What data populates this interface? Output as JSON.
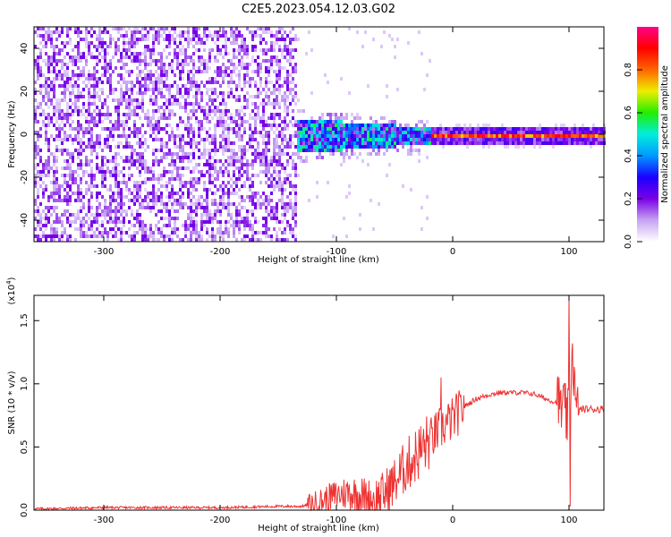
{
  "figure": {
    "title": "C2E5.2023.054.12.03.G02"
  },
  "colors": {
    "snr_line": "#ee3333",
    "colorbar_stops": [
      "#ffffff",
      "#c6a3f2",
      "#7a00e6",
      "#1a00ff",
      "#0099ff",
      "#00eedd",
      "#22ee00",
      "#eeee00",
      "#ff6600",
      "#ff0000",
      "#ff0088"
    ]
  },
  "chart_data": [
    {
      "type": "heatmap",
      "name": "spectrogram",
      "xlabel": "Height of straight line (km)",
      "ylabel": "Frequency (Hz)",
      "xlim": [
        -360,
        130
      ],
      "ylim": [
        -50,
        50
      ],
      "x_ticks": [
        -300,
        -200,
        -100,
        0,
        100
      ],
      "x_tick_labels": [
        "-300",
        "-200",
        "-100",
        "0",
        "100"
      ],
      "y_ticks": [
        -40,
        -20,
        0,
        20,
        40
      ],
      "y_tick_labels": [
        "-40",
        "-20",
        "0",
        "20",
        "40"
      ],
      "colorbar": {
        "label": "Normalized spectral amplitude",
        "range": [
          0,
          1
        ],
        "ticks": [
          0.0,
          0.2,
          0.4,
          0.6,
          0.8
        ],
        "tick_labels": [
          "0.0",
          "0.2",
          "0.4",
          "0.6",
          "0.8"
        ]
      },
      "regions": [
        {
          "x": [
            -360,
            -135
          ],
          "description_level": "broadband noise",
          "amplitude": 0.15
        },
        {
          "x": [
            -135,
            -20
          ],
          "center_freq": 0,
          "spread_hz": 8,
          "amplitude": 0.55
        },
        {
          "x": [
            -20,
            130
          ],
          "center_freq": 0,
          "spread_hz": 2,
          "amplitude": 0.9
        }
      ]
    },
    {
      "type": "line",
      "name": "snr",
      "xlabel": "Height of straight line (km)",
      "ylabel": "SNR (10 * v/v)",
      "y_multiplier": "(x10",
      "y_multiplier_exp": "4",
      "xlim": [
        -360,
        130
      ],
      "ylim": [
        0,
        1.7
      ],
      "x_ticks": [
        -300,
        -200,
        -100,
        0,
        100
      ],
      "x_tick_labels": [
        "-300",
        "-200",
        "-100",
        "0",
        "100"
      ],
      "y_ticks": [
        0.0,
        0.5,
        1.0,
        1.5
      ],
      "y_tick_labels": [
        "0.0",
        "0.5",
        "1.0",
        "1.5"
      ],
      "series": [
        {
          "x": [
            -360,
            -300,
            -250,
            -200,
            -150,
            -130,
            -120,
            -110,
            -100,
            -90,
            -80,
            -70,
            -60,
            -50,
            -40,
            -30,
            -20,
            -10,
            0,
            10,
            20,
            30,
            40,
            50,
            60,
            70,
            80,
            90,
            95,
            100,
            103,
            106,
            110,
            120,
            130
          ],
          "y": [
            0.01,
            0.02,
            0.02,
            0.02,
            0.03,
            0.03,
            0.05,
            0.08,
            0.12,
            0.14,
            0.12,
            0.08,
            0.12,
            0.22,
            0.35,
            0.45,
            0.55,
            0.65,
            0.72,
            0.82,
            0.88,
            0.91,
            0.93,
            0.93,
            0.93,
            0.92,
            0.88,
            0.85,
            0.8,
            0.7,
            1.3,
            0.75,
            0.8,
            0.8,
            0.8
          ],
          "peaks": [
            {
              "x": -10,
              "y": 1.05
            },
            {
              "x": 100,
              "y": 1.7
            },
            {
              "x": 103,
              "y": 1.32
            },
            {
              "x": 101,
              "y": 0.03
            }
          ]
        }
      ]
    }
  ]
}
